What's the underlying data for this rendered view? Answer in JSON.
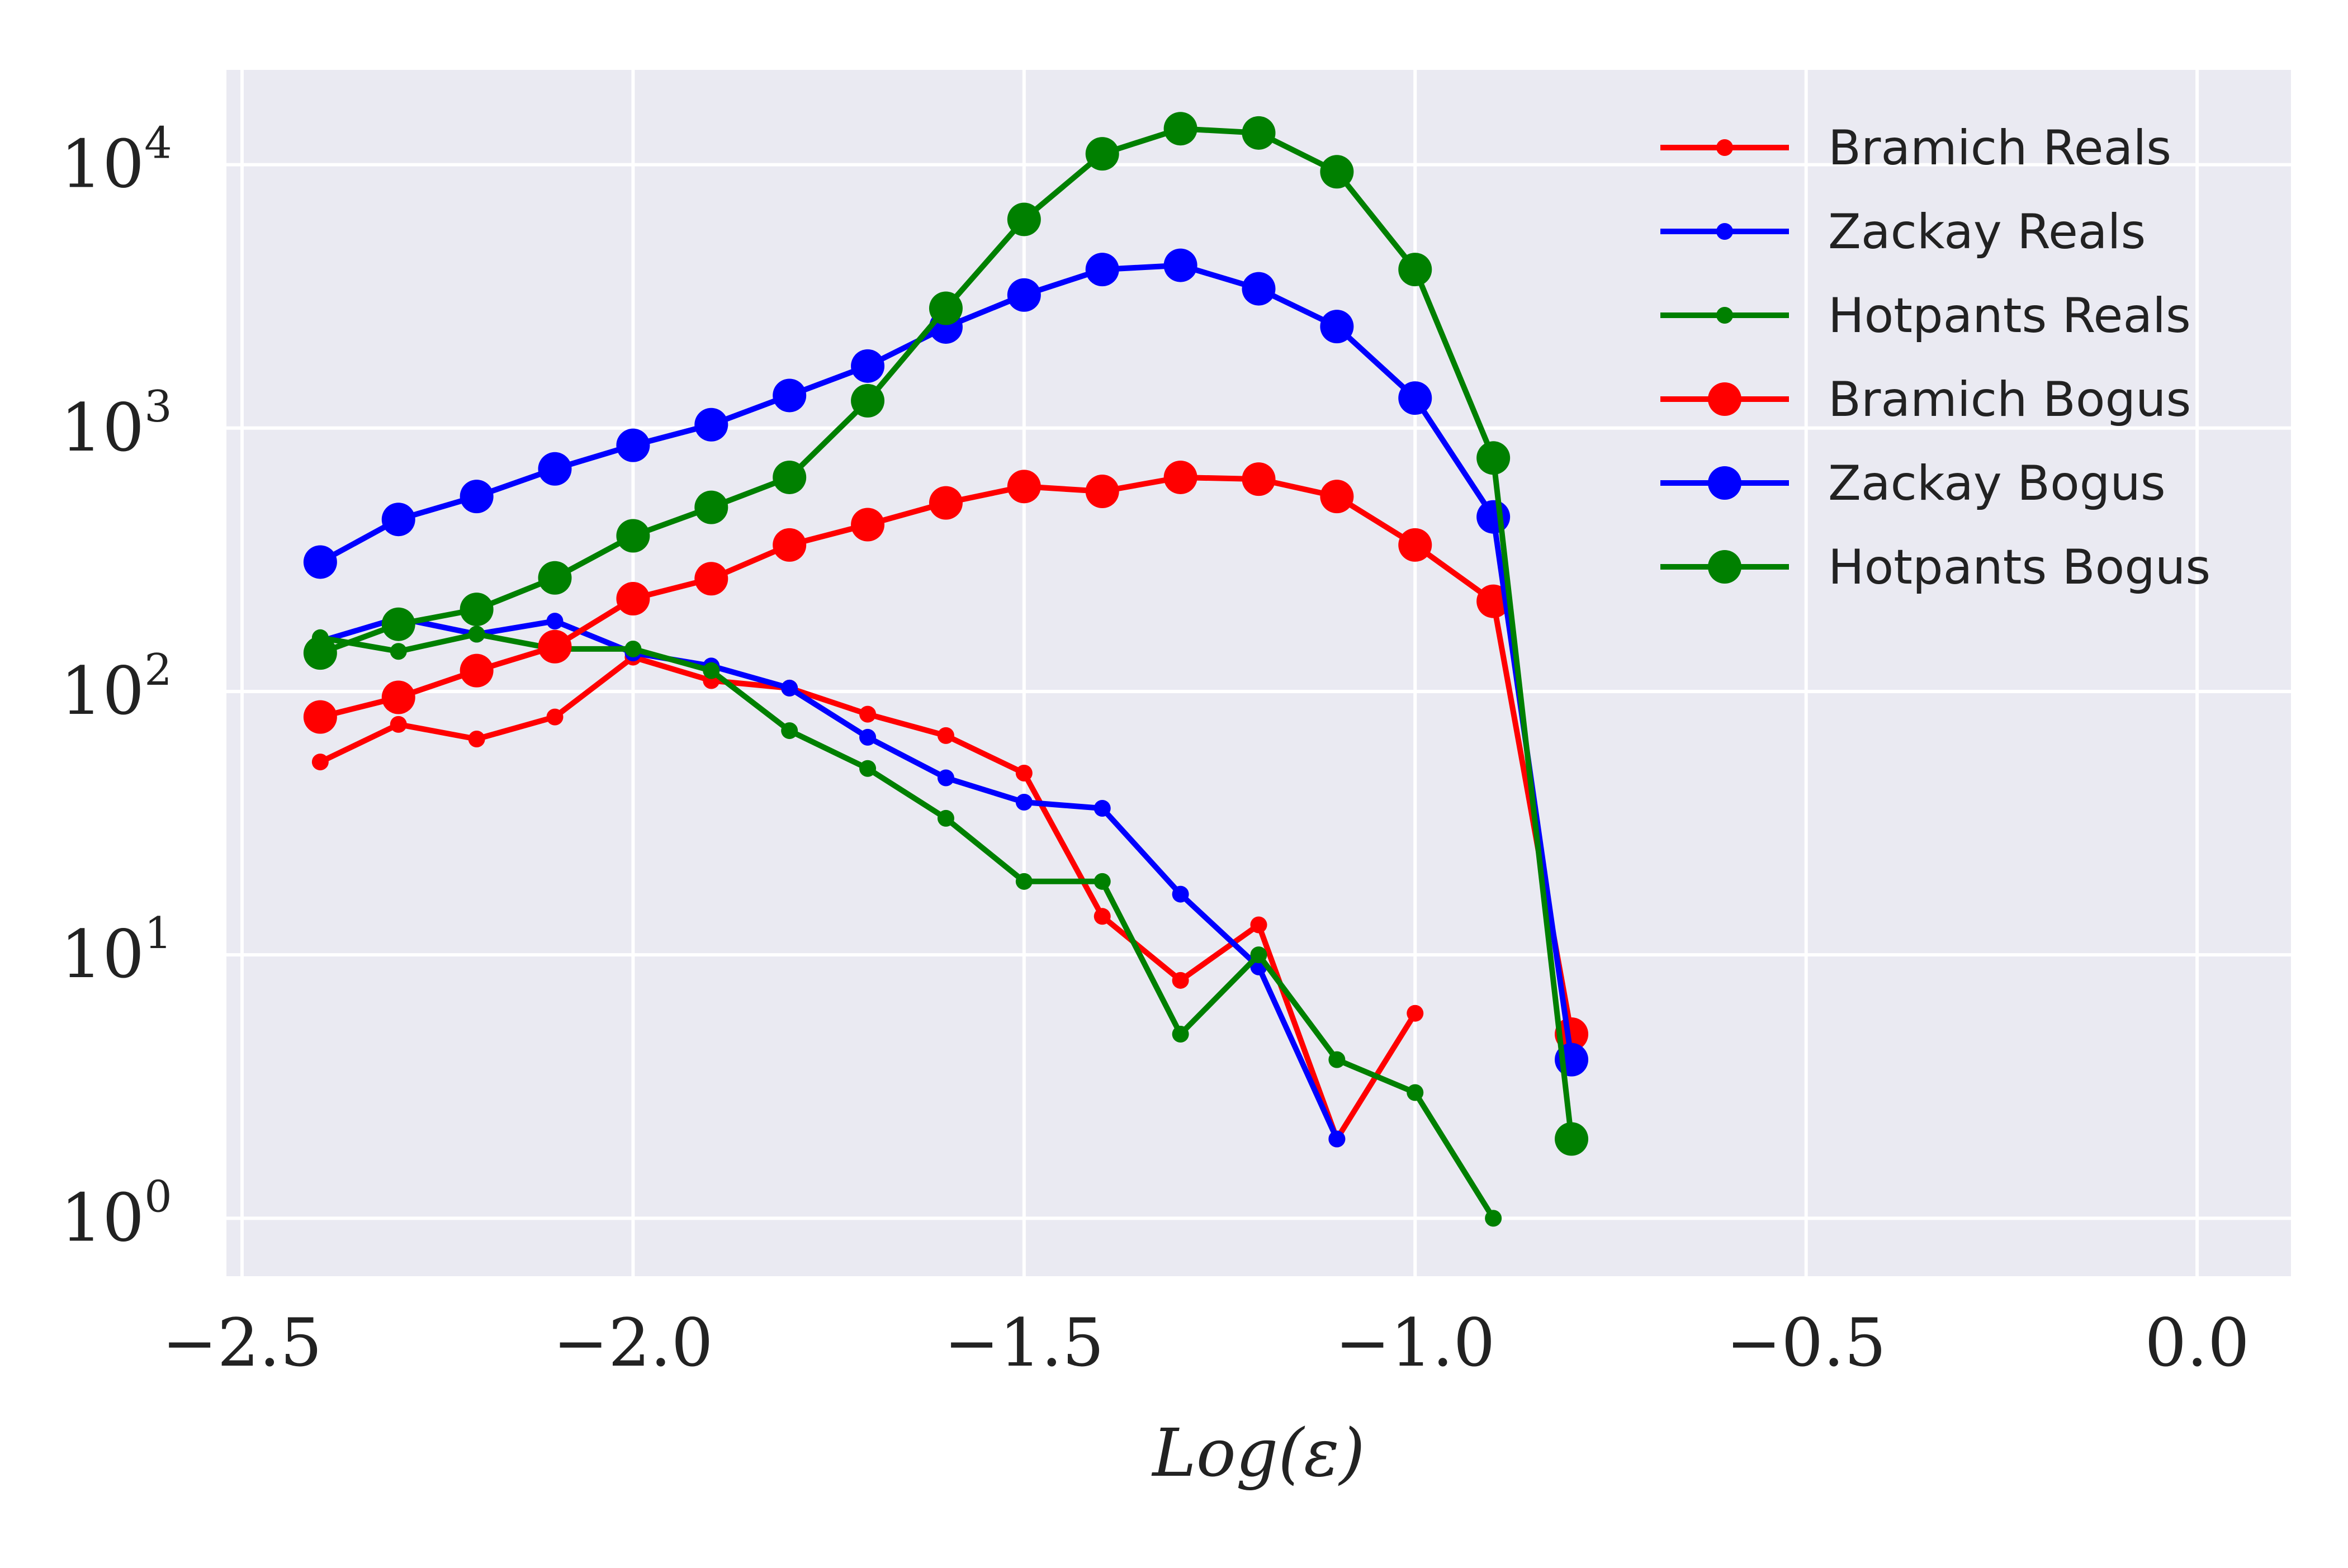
{
  "chart_data": {
    "type": "line",
    "title": "",
    "xlabel": "Log(ε)",
    "ylabel": "",
    "xlim": [
      -2.52,
      0.12
    ],
    "ylim_log10": [
      -0.22,
      4.36
    ],
    "y_scale": "log",
    "x_ticks": [
      -2.5,
      -2.0,
      -1.5,
      -1.0,
      -0.5,
      0.0
    ],
    "x_tick_labels": [
      "−2.5",
      "−2.0",
      "−1.5",
      "−1.0",
      "−0.5",
      "0.0"
    ],
    "y_ticks": [
      {
        "base": "10",
        "exp": "0",
        "value": 1
      },
      {
        "base": "10",
        "exp": "1",
        "value": 10
      },
      {
        "base": "10",
        "exp": "2",
        "value": 100
      },
      {
        "base": "10",
        "exp": "3",
        "value": 1000
      },
      {
        "base": "10",
        "exp": "4",
        "value": 10000
      }
    ],
    "grid": true,
    "legend_position": "top-right",
    "series": [
      {
        "name": "Bramich Reals",
        "color": "#ff0000",
        "marker": "small",
        "x": [
          -2.4,
          -2.3,
          -2.2,
          -2.1,
          -2.0,
          -1.9,
          -1.8,
          -1.7,
          -1.6,
          -1.5,
          -1.4,
          -1.3,
          -1.2,
          -1.1,
          -1.0
        ],
        "y": [
          54,
          75,
          66,
          80,
          135,
          110,
          103,
          82,
          68,
          49,
          14,
          8,
          13,
          2,
          6
        ]
      },
      {
        "name": "Zackay Reals",
        "color": "#0000ff",
        "marker": "small",
        "x": [
          -2.4,
          -2.3,
          -2.2,
          -2.1,
          -2.0,
          -1.9,
          -1.8,
          -1.7,
          -1.6,
          -1.5,
          -1.4,
          -1.3,
          -1.2,
          -1.1
        ],
        "y": [
          155,
          190,
          165,
          185,
          140,
          125,
          103,
          67,
          47,
          38,
          36,
          17,
          9,
          2
        ]
      },
      {
        "name": "Hotpants Reals",
        "color": "#008000",
        "marker": "small",
        "x": [
          -2.4,
          -2.3,
          -2.2,
          -2.1,
          -2.0,
          -1.9,
          -1.8,
          -1.7,
          -1.6,
          -1.5,
          -1.4,
          -1.3,
          -1.2,
          -1.1,
          -1.0,
          -0.9
        ],
        "y": [
          160,
          142,
          165,
          145,
          145,
          120,
          71,
          51,
          33,
          19,
          19,
          5,
          10,
          4,
          3,
          1
        ]
      },
      {
        "name": "Bramich Bogus",
        "color": "#ff0000",
        "marker": "large",
        "x": [
          -2.4,
          -2.3,
          -2.2,
          -2.1,
          -2.0,
          -1.9,
          -1.8,
          -1.7,
          -1.6,
          -1.5,
          -1.4,
          -1.3,
          -1.2,
          -1.1,
          -1.0,
          -0.9,
          -0.8
        ],
        "y": [
          80,
          95,
          120,
          148,
          225,
          268,
          360,
          430,
          520,
          600,
          575,
          650,
          640,
          550,
          360,
          220,
          5
        ]
      },
      {
        "name": "Zackay Bogus",
        "color": "#0000ff",
        "marker": "large",
        "x": [
          -2.4,
          -2.3,
          -2.2,
          -2.1,
          -2.0,
          -1.9,
          -1.8,
          -1.7,
          -1.6,
          -1.5,
          -1.4,
          -1.3,
          -1.2,
          -1.1,
          -1.0,
          -0.9,
          -0.8
        ],
        "y": [
          310,
          450,
          550,
          700,
          860,
          1030,
          1330,
          1720,
          2420,
          3200,
          4000,
          4150,
          3380,
          2430,
          1300,
          460,
          4
        ]
      },
      {
        "name": "Hotpants Bogus",
        "color": "#008000",
        "marker": "large",
        "x": [
          -2.4,
          -2.3,
          -2.2,
          -2.1,
          -2.0,
          -1.9,
          -1.8,
          -1.7,
          -1.6,
          -1.5,
          -1.4,
          -1.3,
          -1.2,
          -1.1,
          -1.0,
          -0.9,
          -0.8
        ],
        "y": [
          140,
          180,
          205,
          270,
          390,
          500,
          650,
          1270,
          2850,
          6200,
          11000,
          13700,
          13200,
          9400,
          4000,
          770,
          2
        ]
      }
    ]
  }
}
